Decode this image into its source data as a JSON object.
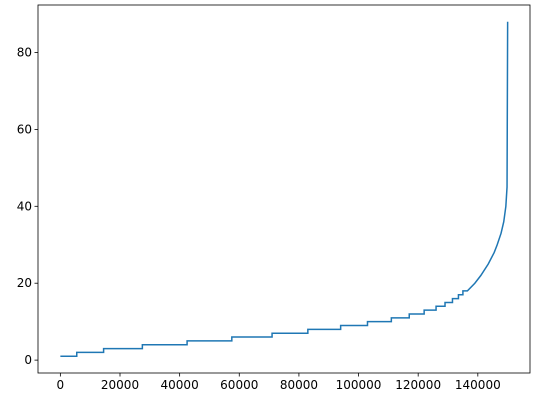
{
  "chart_data": {
    "type": "line",
    "x": [
      0,
      5500,
      5500,
      14500,
      14500,
      27500,
      27500,
      42500,
      42500,
      57500,
      57500,
      71000,
      71000,
      83000,
      83000,
      94000,
      94000,
      103000,
      103000,
      111000,
      111000,
      117000,
      117000,
      122000,
      122000,
      126000,
      126000,
      129000,
      129000,
      131500,
      131500,
      133500,
      133500,
      135000,
      135000,
      136500,
      139000,
      141000,
      143500,
      145500,
      146500,
      147800,
      148700,
      149400,
      149800,
      150000
    ],
    "series": [
      {
        "color": "#1f77b4",
        "values": [
          1,
          1,
          2,
          2,
          3,
          3,
          4,
          4,
          5,
          5,
          6,
          6,
          7,
          7,
          8,
          8,
          9,
          9,
          10,
          10,
          11,
          11,
          12,
          12,
          13,
          13,
          14,
          14,
          15,
          15,
          16,
          16,
          17,
          17,
          18,
          18,
          20,
          22,
          25,
          28,
          30,
          33,
          36,
          40,
          45,
          88
        ]
      }
    ],
    "xlim": [
      -7500,
      157500
    ],
    "ylim": [
      -3.35,
      92.35
    ],
    "xticks": [
      0,
      20000,
      40000,
      60000,
      80000,
      100000,
      120000,
      140000
    ],
    "yticks": [
      0,
      20,
      40,
      60,
      80
    ],
    "grid": false
  }
}
